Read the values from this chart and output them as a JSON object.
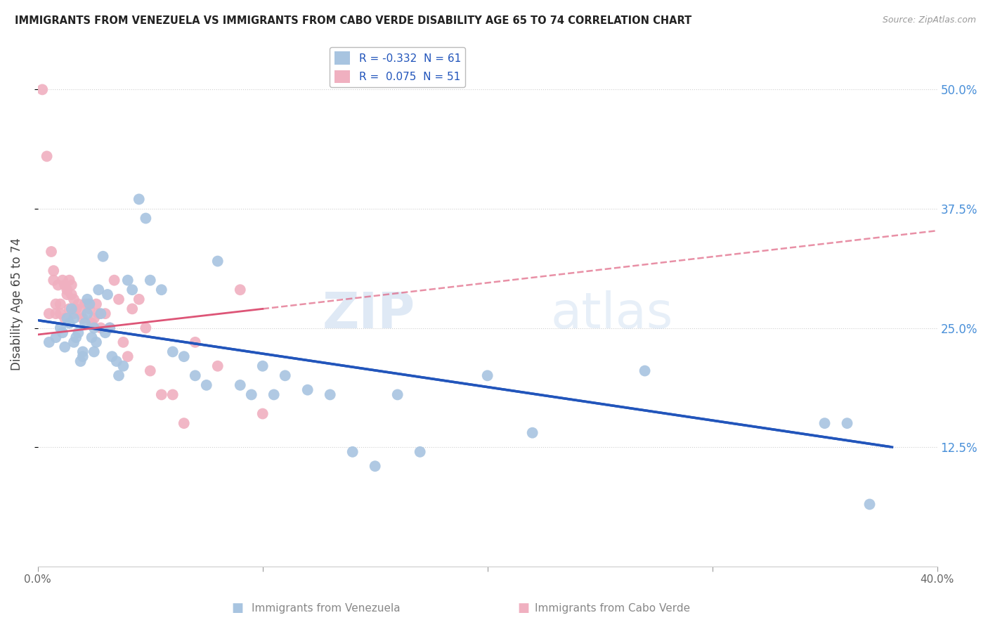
{
  "title": "IMMIGRANTS FROM VENEZUELA VS IMMIGRANTS FROM CABO VERDE DISABILITY AGE 65 TO 74 CORRELATION CHART",
  "source": "Source: ZipAtlas.com",
  "xlabel_bottom": [
    "Immigrants from Venezuela",
    "Immigrants from Cabo Verde"
  ],
  "ylabel": "Disability Age 65 to 74",
  "xlim": [
    0.0,
    0.4
  ],
  "ylim": [
    0.0,
    0.55
  ],
  "ytick_labels_right": [
    "12.5%",
    "25.0%",
    "37.5%",
    "50.0%"
  ],
  "ytick_vals_right": [
    0.125,
    0.25,
    0.375,
    0.5
  ],
  "grid_color": "#d0d0d0",
  "background_color": "#ffffff",
  "legend_R1": "-0.332",
  "legend_N1": "61",
  "legend_R2": "0.075",
  "legend_N2": "51",
  "color_venezuela": "#a8c4e0",
  "color_cabo_verde": "#f0b0c0",
  "line_color_venezuela": "#2255bb",
  "line_color_cabo_verde": "#dd5577",
  "watermark": "ZIPatlas",
  "venezuela_x": [
    0.005,
    0.008,
    0.01,
    0.011,
    0.012,
    0.013,
    0.014,
    0.015,
    0.016,
    0.016,
    0.017,
    0.018,
    0.019,
    0.02,
    0.02,
    0.021,
    0.022,
    0.022,
    0.023,
    0.024,
    0.025,
    0.025,
    0.026,
    0.027,
    0.028,
    0.029,
    0.03,
    0.031,
    0.032,
    0.033,
    0.035,
    0.036,
    0.038,
    0.04,
    0.042,
    0.045,
    0.048,
    0.05,
    0.055,
    0.06,
    0.065,
    0.07,
    0.075,
    0.08,
    0.09,
    0.095,
    0.1,
    0.105,
    0.11,
    0.12,
    0.13,
    0.14,
    0.15,
    0.16,
    0.17,
    0.2,
    0.22,
    0.27,
    0.35,
    0.36,
    0.37
  ],
  "venezuela_y": [
    0.235,
    0.24,
    0.25,
    0.245,
    0.23,
    0.26,
    0.255,
    0.27,
    0.26,
    0.235,
    0.24,
    0.245,
    0.215,
    0.225,
    0.22,
    0.255,
    0.265,
    0.28,
    0.275,
    0.24,
    0.225,
    0.25,
    0.235,
    0.29,
    0.265,
    0.325,
    0.245,
    0.285,
    0.25,
    0.22,
    0.215,
    0.2,
    0.21,
    0.3,
    0.29,
    0.385,
    0.365,
    0.3,
    0.29,
    0.225,
    0.22,
    0.2,
    0.19,
    0.32,
    0.19,
    0.18,
    0.21,
    0.18,
    0.2,
    0.185,
    0.18,
    0.12,
    0.105,
    0.18,
    0.12,
    0.2,
    0.14,
    0.205,
    0.15,
    0.15,
    0.065
  ],
  "cabo_verde_x": [
    0.002,
    0.004,
    0.005,
    0.006,
    0.007,
    0.007,
    0.008,
    0.008,
    0.009,
    0.01,
    0.01,
    0.011,
    0.012,
    0.012,
    0.013,
    0.013,
    0.014,
    0.014,
    0.015,
    0.015,
    0.016,
    0.016,
    0.017,
    0.018,
    0.019,
    0.02,
    0.021,
    0.022,
    0.023,
    0.024,
    0.025,
    0.026,
    0.027,
    0.028,
    0.03,
    0.032,
    0.034,
    0.036,
    0.038,
    0.04,
    0.042,
    0.045,
    0.048,
    0.05,
    0.055,
    0.06,
    0.065,
    0.07,
    0.08,
    0.09,
    0.1
  ],
  "cabo_verde_y": [
    0.5,
    0.43,
    0.265,
    0.33,
    0.3,
    0.31,
    0.275,
    0.265,
    0.295,
    0.275,
    0.265,
    0.3,
    0.295,
    0.26,
    0.29,
    0.285,
    0.27,
    0.3,
    0.295,
    0.285,
    0.265,
    0.28,
    0.27,
    0.275,
    0.265,
    0.26,
    0.275,
    0.275,
    0.27,
    0.255,
    0.26,
    0.275,
    0.265,
    0.25,
    0.265,
    0.25,
    0.3,
    0.28,
    0.235,
    0.22,
    0.27,
    0.28,
    0.25,
    0.205,
    0.18,
    0.18,
    0.15,
    0.235,
    0.21,
    0.29,
    0.16
  ],
  "line_ven_x0": 0.0,
  "line_ven_x1": 0.38,
  "line_ven_y0": 0.258,
  "line_ven_y1": 0.125,
  "line_cabo_x0": 0.0,
  "line_cabo_x1": 0.1,
  "line_cabo_y0": 0.243,
  "line_cabo_y1": 0.27,
  "line_cabo_dash_x0": 0.1,
  "line_cabo_dash_x1": 0.4,
  "line_cabo_dash_y0": 0.27,
  "line_cabo_dash_y1": 0.352
}
